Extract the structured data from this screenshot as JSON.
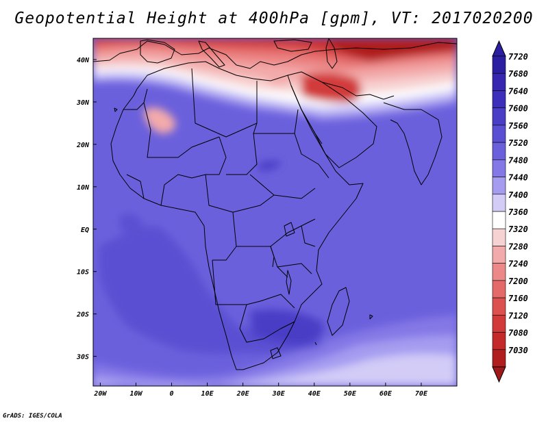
{
  "title": "Geopotential Height at 400hPa [gpm], VT: 2017020200",
  "credit": "GrADS: IGES/COLA",
  "map": {
    "lon_range": [
      -22,
      80
    ],
    "lat_range": [
      -37,
      45
    ],
    "lon_ticks": [
      {
        "value": -20,
        "label": "20W"
      },
      {
        "value": -10,
        "label": "10W"
      },
      {
        "value": 0,
        "label": "0"
      },
      {
        "value": 10,
        "label": "10E"
      },
      {
        "value": 20,
        "label": "20E"
      },
      {
        "value": 30,
        "label": "30E"
      },
      {
        "value": 40,
        "label": "40E"
      },
      {
        "value": 50,
        "label": "50E"
      },
      {
        "value": 60,
        "label": "60E"
      },
      {
        "value": 70,
        "label": "70E"
      }
    ],
    "lat_ticks": [
      {
        "value": 40,
        "label": "40N"
      },
      {
        "value": 30,
        "label": "30N"
      },
      {
        "value": 20,
        "label": "20N"
      },
      {
        "value": 10,
        "label": "10N"
      },
      {
        "value": 0,
        "label": "EQ"
      },
      {
        "value": -10,
        "label": "10S"
      },
      {
        "value": -20,
        "label": "20S"
      },
      {
        "value": -30,
        "label": "30S"
      }
    ]
  },
  "colorbar": {
    "levels": [
      {
        "value": "7720",
        "color": "#2b1ea0"
      },
      {
        "value": "7680",
        "color": "#3626b0"
      },
      {
        "value": "7640",
        "color": "#3d2fbc"
      },
      {
        "value": "7600",
        "color": "#4a3dc6"
      },
      {
        "value": "7560",
        "color": "#5a4fd2"
      },
      {
        "value": "7520",
        "color": "#6b60dc"
      },
      {
        "value": "7480",
        "color": "#8478e6"
      },
      {
        "value": "7440",
        "color": "#a59cf0"
      },
      {
        "value": "7400",
        "color": "#d2ccf7"
      },
      {
        "value": "7360",
        "color": "#ffffff"
      },
      {
        "value": "7320",
        "color": "#f7d2d2"
      },
      {
        "value": "7280",
        "color": "#f3aaaa"
      },
      {
        "value": "7240",
        "color": "#ec8888"
      },
      {
        "value": "7200",
        "color": "#e46a6a"
      },
      {
        "value": "7160",
        "color": "#dc5050"
      },
      {
        "value": "7120",
        "color": "#d23a3a"
      },
      {
        "value": "7080",
        "color": "#c42a2a"
      },
      {
        "value": "7030",
        "color": "#b01e1e"
      }
    ],
    "bottom_color": "#9e1a1a"
  }
}
